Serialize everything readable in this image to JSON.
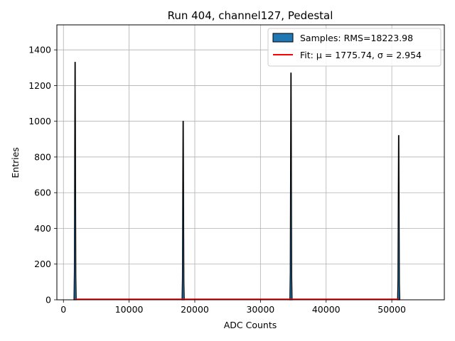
{
  "chart_data": {
    "type": "bar",
    "title": "Run 404, channel127, Pedestal",
    "xlabel": "ADC Counts",
    "ylabel": "Entries",
    "xlim": [
      -1000,
      58000
    ],
    "ylim": [
      0,
      1540
    ],
    "xticks": [
      0,
      10000,
      20000,
      30000,
      40000,
      50000
    ],
    "yticks": [
      0,
      200,
      400,
      600,
      800,
      1000,
      1200,
      1400
    ],
    "grid": true,
    "legend_position": "top-right",
    "series": [
      {
        "name": "Samples: RMS=18223.98",
        "kind": "histogram",
        "color": "#1f77b4",
        "edge_color": "#000000",
        "peaks": [
          {
            "center": 1776,
            "height": 1330
          },
          {
            "center": 18230,
            "height": 1000
          },
          {
            "center": 34650,
            "height": 1270
          },
          {
            "center": 51050,
            "height": 920
          }
        ]
      },
      {
        "name": "Fit: μ = 1775.74, σ = 2.954",
        "kind": "line",
        "color": "#ff0000",
        "x": [
          1776,
          51100
        ],
        "y": [
          0,
          0
        ]
      }
    ]
  }
}
